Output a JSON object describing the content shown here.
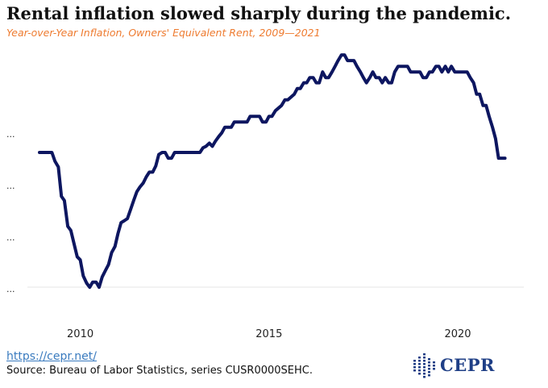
{
  "header": {
    "title": "Rental inflation slowed sharply during the pandemic.",
    "subtitle": "Year-over-Year Inflation, Owners' Equivalent Rent, 2009—2021"
  },
  "footer": {
    "link": "https://cepr.net/",
    "source": "Source: Bureau of Labor Statistics, series CUSR0000SEHC."
  },
  "logo": {
    "text": "CEPR",
    "color": "#1f3f86"
  },
  "chart_data": {
    "type": "line",
    "xlabel": "",
    "ylabel": "",
    "ylim": [
      -1.0,
      4.0
    ],
    "xlim": [
      2008.6,
      2021.75
    ],
    "x_ticks": [
      {
        "value": 2010,
        "label": "2010"
      },
      {
        "value": 2015,
        "label": "2015"
      },
      {
        "value": 2020,
        "label": "2020"
      }
    ],
    "y_ticks": [
      {
        "value": -0.5,
        "label": "..."
      },
      {
        "value": 0.5,
        "label": "..."
      },
      {
        "value": 1.5,
        "label": "..."
      },
      {
        "value": 2.5,
        "label": "..."
      }
    ],
    "grid": false,
    "line_color": "#0d1660",
    "series": [
      {
        "values": [
          [
            2008.92,
            2.14
          ],
          [
            2009.25,
            2.14
          ],
          [
            2009.33,
            1.97
          ],
          [
            2009.42,
            1.86
          ],
          [
            2009.5,
            1.29
          ],
          [
            2009.58,
            1.21
          ],
          [
            2009.67,
            0.71
          ],
          [
            2009.75,
            0.63
          ],
          [
            2009.83,
            0.39
          ],
          [
            2009.92,
            0.12
          ],
          [
            2010.0,
            0.06
          ],
          [
            2010.08,
            -0.25
          ],
          [
            2010.17,
            -0.39
          ],
          [
            2010.25,
            -0.47
          ],
          [
            2010.33,
            -0.37
          ],
          [
            2010.42,
            -0.37
          ],
          [
            2010.5,
            -0.47
          ],
          [
            2010.58,
            -0.27
          ],
          [
            2010.67,
            -0.14
          ],
          [
            2010.75,
            -0.03
          ],
          [
            2010.83,
            0.2
          ],
          [
            2010.92,
            0.32
          ],
          [
            2011.0,
            0.57
          ],
          [
            2011.08,
            0.78
          ],
          [
            2011.17,
            0.82
          ],
          [
            2011.25,
            0.86
          ],
          [
            2011.33,
            1.03
          ],
          [
            2011.42,
            1.22
          ],
          [
            2011.5,
            1.38
          ],
          [
            2011.58,
            1.47
          ],
          [
            2011.67,
            1.55
          ],
          [
            2011.75,
            1.67
          ],
          [
            2011.83,
            1.76
          ],
          [
            2011.92,
            1.76
          ],
          [
            2012.0,
            1.88
          ],
          [
            2012.08,
            2.1
          ],
          [
            2012.17,
            2.14
          ],
          [
            2012.25,
            2.14
          ],
          [
            2012.33,
            2.03
          ],
          [
            2012.42,
            2.03
          ],
          [
            2012.5,
            2.14
          ],
          [
            2013.17,
            2.14
          ],
          [
            2013.25,
            2.23
          ],
          [
            2013.33,
            2.26
          ],
          [
            2013.42,
            2.32
          ],
          [
            2013.5,
            2.26
          ],
          [
            2013.58,
            2.36
          ],
          [
            2013.67,
            2.45
          ],
          [
            2013.75,
            2.52
          ],
          [
            2013.83,
            2.63
          ],
          [
            2013.92,
            2.63
          ],
          [
            2014.0,
            2.63
          ],
          [
            2014.08,
            2.73
          ],
          [
            2014.17,
            2.73
          ],
          [
            2014.42,
            2.73
          ],
          [
            2014.5,
            2.84
          ],
          [
            2014.75,
            2.84
          ],
          [
            2014.83,
            2.73
          ],
          [
            2014.92,
            2.73
          ],
          [
            2015.0,
            2.84
          ],
          [
            2015.08,
            2.84
          ],
          [
            2015.17,
            2.95
          ],
          [
            2015.33,
            3.05
          ],
          [
            2015.42,
            3.16
          ],
          [
            2015.5,
            3.16
          ],
          [
            2015.67,
            3.27
          ],
          [
            2015.75,
            3.38
          ],
          [
            2015.83,
            3.38
          ],
          [
            2015.92,
            3.49
          ],
          [
            2016.0,
            3.49
          ],
          [
            2016.08,
            3.59
          ],
          [
            2016.17,
            3.59
          ],
          [
            2016.25,
            3.49
          ],
          [
            2016.33,
            3.49
          ],
          [
            2016.42,
            3.7
          ],
          [
            2016.5,
            3.59
          ],
          [
            2016.58,
            3.59
          ],
          [
            2016.67,
            3.7
          ],
          [
            2016.75,
            3.81
          ],
          [
            2016.83,
            3.92
          ],
          [
            2016.92,
            4.03
          ],
          [
            2017.0,
            4.03
          ],
          [
            2017.08,
            3.92
          ],
          [
            2017.25,
            3.92
          ],
          [
            2017.33,
            3.81
          ],
          [
            2017.42,
            3.7
          ],
          [
            2017.5,
            3.59
          ],
          [
            2017.58,
            3.49
          ],
          [
            2017.67,
            3.59
          ],
          [
            2017.75,
            3.7
          ],
          [
            2017.83,
            3.59
          ],
          [
            2017.92,
            3.59
          ],
          [
            2018.0,
            3.49
          ],
          [
            2018.08,
            3.59
          ],
          [
            2018.17,
            3.49
          ],
          [
            2018.25,
            3.49
          ],
          [
            2018.33,
            3.7
          ],
          [
            2018.42,
            3.81
          ],
          [
            2018.5,
            3.81
          ],
          [
            2018.67,
            3.81
          ],
          [
            2018.75,
            3.7
          ],
          [
            2019.0,
            3.7
          ],
          [
            2019.08,
            3.59
          ],
          [
            2019.17,
            3.59
          ],
          [
            2019.25,
            3.7
          ],
          [
            2019.33,
            3.7
          ],
          [
            2019.42,
            3.81
          ],
          [
            2019.5,
            3.81
          ],
          [
            2019.58,
            3.7
          ],
          [
            2019.67,
            3.81
          ],
          [
            2019.75,
            3.7
          ],
          [
            2019.83,
            3.81
          ],
          [
            2019.92,
            3.7
          ],
          [
            2020.25,
            3.7
          ],
          [
            2020.33,
            3.59
          ],
          [
            2020.42,
            3.49
          ],
          [
            2020.5,
            3.27
          ],
          [
            2020.58,
            3.27
          ],
          [
            2020.67,
            3.05
          ],
          [
            2020.75,
            3.05
          ],
          [
            2020.83,
            2.84
          ],
          [
            2020.92,
            2.63
          ],
          [
            2021.0,
            2.41
          ],
          [
            2021.08,
            2.03
          ],
          [
            2021.25,
            2.03
          ]
        ]
      }
    ]
  }
}
